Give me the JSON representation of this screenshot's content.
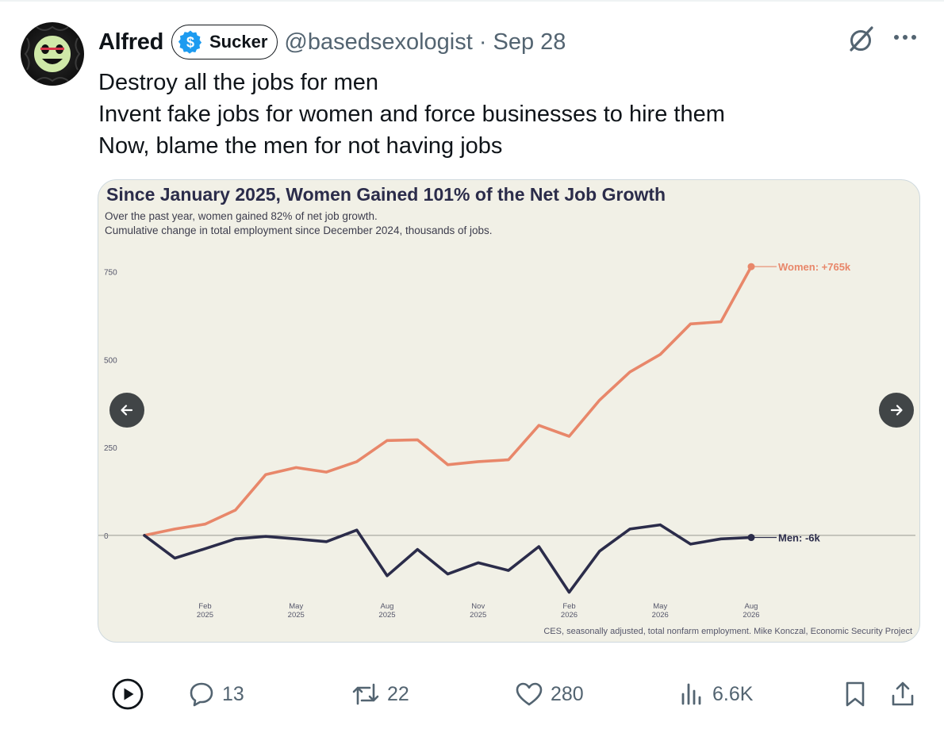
{
  "tweet": {
    "author": {
      "display_name": "Alfred",
      "badge_label": "Sucker",
      "handle": "@basedsexologist"
    },
    "separator": "·",
    "date": "Sep 28",
    "text_lines": [
      "Destroy all the jobs for men",
      "Invent fake jobs for women and force businesses to hire them",
      "Now, blame the men for not having jobs"
    ]
  },
  "icons": {
    "badge": "dollar-icon",
    "grok": "grok-icon",
    "more": "more-icon",
    "prev": "arrow-left-icon",
    "next": "arrow-right-icon"
  },
  "colors": {
    "women": "#e8876a",
    "men": "#2b2c4a",
    "chart_bg": "#f1f0e6",
    "badge_blue": "#1d9bf0"
  },
  "chart_data": {
    "type": "line",
    "title": "Since January 2025, Women Gained 101% of the Net Job Growth",
    "subtitle_lines": [
      "Over the past year, women gained 82% of net job growth.",
      "Cumulative change in total employment since December 2024, thousands of jobs."
    ],
    "y_ticks": [
      0,
      250,
      500,
      750
    ],
    "ylim": [
      -190,
      790
    ],
    "x_ticks": [
      {
        "line1": "Feb",
        "line2": "2025",
        "index": 2
      },
      {
        "line1": "May",
        "line2": "2025",
        "index": 5
      },
      {
        "line1": "Aug",
        "line2": "2025",
        "index": 8
      },
      {
        "line1": "Nov",
        "line2": "2025",
        "index": 11
      },
      {
        "line1": "Feb",
        "line2": "2026",
        "index": 14
      },
      {
        "line1": "May",
        "line2": "2026",
        "index": 17
      },
      {
        "line1": "Aug",
        "line2": "2026",
        "index": 20
      }
    ],
    "x": [
      "Dec 2024",
      "Jan 2025",
      "Feb 2025",
      "Mar 2025",
      "Apr 2025",
      "May 2025",
      "Jun 2025",
      "Jul 2025",
      "Aug 2025",
      "Sep 2025",
      "Oct 2025",
      "Nov 2025",
      "Dec 2025",
      "Jan 2026",
      "Feb 2026",
      "Mar 2026",
      "Apr 2026",
      "May 2026",
      "Jun 2026",
      "Jul 2026",
      "Aug 2026"
    ],
    "series": [
      {
        "name": "Women",
        "label": "Women: +765k",
        "color": "#e8876a",
        "values": [
          0,
          18,
          32,
          72,
          173,
          193,
          180,
          210,
          270,
          272,
          201,
          210,
          215,
          313,
          282,
          385,
          465,
          515,
          602,
          608,
          765
        ]
      },
      {
        "name": "Men",
        "label": "Men: -6k",
        "color": "#2b2c4a",
        "values": [
          0,
          -65,
          -38,
          -10,
          -3,
          -10,
          -18,
          15,
          -115,
          -40,
          -110,
          -78,
          -100,
          -32,
          -162,
          -45,
          18,
          30,
          -25,
          -10,
          -6
        ]
      }
    ],
    "grid": false,
    "zero_line": true,
    "source": "CES, seasonally adjusted, total nonfarm employment. Mike Konczal, Economic Security Project"
  },
  "actions": {
    "replies": "13",
    "retweets": "22",
    "likes": "280",
    "views": "6.6K"
  }
}
